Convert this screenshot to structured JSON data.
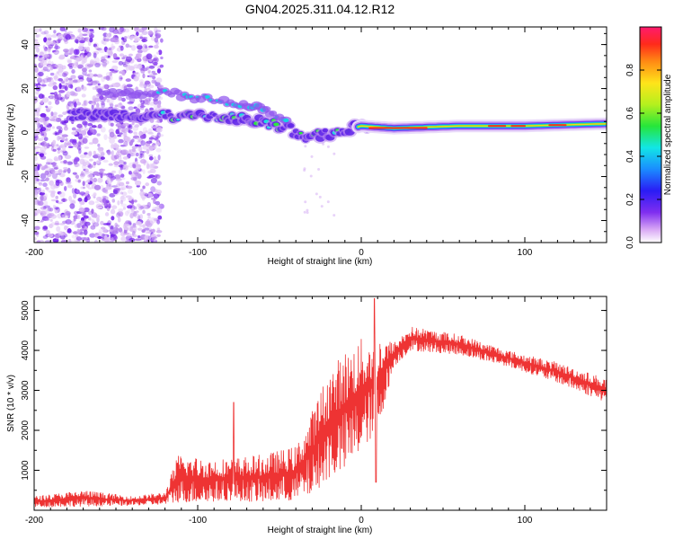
{
  "title": "GN04.2025.311.04.12.R12",
  "chart_data": [
    {
      "type": "heatmap",
      "name": "spectrogram",
      "xlabel": "Height of straight line (km)",
      "ylabel": "Frequency (Hz)",
      "xlim": [
        -200,
        150
      ],
      "ylim": [
        -50,
        48
      ],
      "xticks": [
        -200,
        -100,
        0,
        100
      ],
      "yticks": [
        -40,
        -20,
        0,
        20,
        40
      ],
      "colorbar": {
        "label": "Normalized spectral amplitude",
        "range": [
          0,
          1
        ],
        "ticks": [
          "0.0",
          "0.2",
          "0.4",
          "0.6",
          "0.8"
        ]
      },
      "ridge": [
        {
          "x": -175,
          "f": 8
        },
        {
          "x": -150,
          "f": 8
        },
        {
          "x": -125,
          "f": 8
        },
        {
          "x": -110,
          "f": 7
        },
        {
          "x": -90,
          "f": 7
        },
        {
          "x": -70,
          "f": 6
        },
        {
          "x": -55,
          "f": 4
        },
        {
          "x": -45,
          "f": 2
        },
        {
          "x": -35,
          "f": -2
        },
        {
          "x": -25,
          "f": -1
        },
        {
          "x": -15,
          "f": 0
        },
        {
          "x": -5,
          "f": 2
        },
        {
          "x": 0,
          "f": 3
        },
        {
          "x": 20,
          "f": 2
        },
        {
          "x": 60,
          "f": 3
        },
        {
          "x": 100,
          "f": 3
        },
        {
          "x": 150,
          "f": 4
        }
      ],
      "upper_ridge": [
        {
          "x": -160,
          "f": 18
        },
        {
          "x": -130,
          "f": 18
        },
        {
          "x": -115,
          "f": 18
        },
        {
          "x": -100,
          "f": 16
        },
        {
          "x": -80,
          "f": 14
        },
        {
          "x": -60,
          "f": 11
        },
        {
          "x": -45,
          "f": 6
        }
      ]
    },
    {
      "type": "line",
      "name": "snr",
      "xlabel": "Height of straight line (km)",
      "ylabel": "SNR (10 * v/v)",
      "xlim": [
        -200,
        150
      ],
      "ylim": [
        0,
        5350
      ],
      "xticks": [
        -200,
        -100,
        0,
        100
      ],
      "yticks": [
        1000,
        2000,
        3000,
        4000,
        5000
      ],
      "color": "#ee3333",
      "envelope": [
        {
          "x": -200,
          "lo": 80,
          "hi": 350
        },
        {
          "x": -170,
          "lo": 100,
          "hi": 500
        },
        {
          "x": -140,
          "lo": 120,
          "hi": 350
        },
        {
          "x": -120,
          "lo": 150,
          "hi": 450
        },
        {
          "x": -112,
          "lo": 200,
          "hi": 1400
        },
        {
          "x": -95,
          "lo": 200,
          "hi": 1300
        },
        {
          "x": -80,
          "lo": 250,
          "hi": 1300
        },
        {
          "x": -60,
          "lo": 200,
          "hi": 1400
        },
        {
          "x": -40,
          "lo": 250,
          "hi": 1600
        },
        {
          "x": -30,
          "lo": 400,
          "hi": 2500
        },
        {
          "x": -20,
          "lo": 800,
          "hi": 3500
        },
        {
          "x": -10,
          "lo": 1000,
          "hi": 4000
        },
        {
          "x": 0,
          "lo": 1500,
          "hi": 4300
        },
        {
          "x": 10,
          "lo": 2000,
          "hi": 4400
        },
        {
          "x": 20,
          "lo": 3600,
          "hi": 4200
        },
        {
          "x": 30,
          "lo": 4000,
          "hi": 4600
        },
        {
          "x": 60,
          "lo": 3900,
          "hi": 4400
        },
        {
          "x": 90,
          "lo": 3600,
          "hi": 4000
        },
        {
          "x": 120,
          "lo": 3200,
          "hi": 3700
        },
        {
          "x": 150,
          "lo": 2700,
          "hi": 3300
        }
      ],
      "spikes": [
        {
          "x": -78,
          "y": 2700
        },
        {
          "x": 8,
          "y": 5300
        },
        {
          "x": 9,
          "y": 700
        }
      ]
    }
  ]
}
